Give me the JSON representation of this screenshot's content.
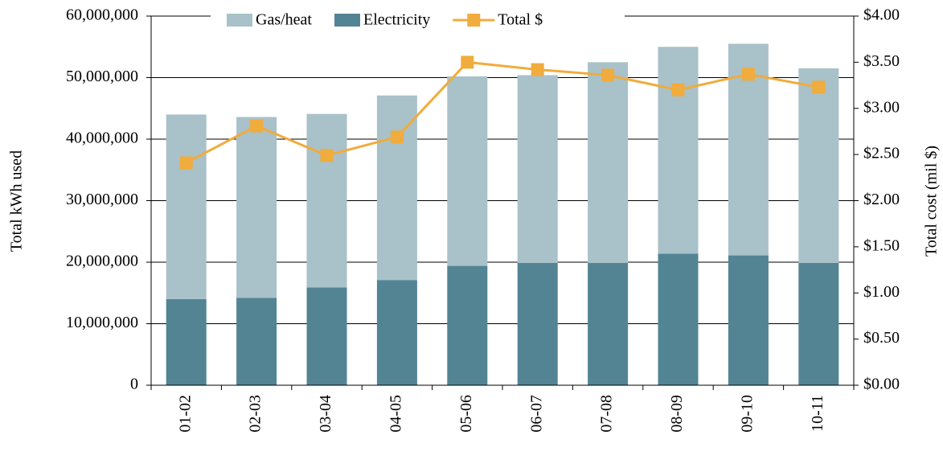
{
  "chart_data": {
    "type": "bar",
    "stacked": true,
    "categories": [
      "01-02",
      "02-03",
      "03-04",
      "04-05",
      "05-06",
      "06-07",
      "07-08",
      "08-09",
      "09-10",
      "10-11"
    ],
    "series": [
      {
        "name": "Gas/heat",
        "color": "#a9c1c9",
        "values": [
          30000000,
          29400000,
          28200000,
          30000000,
          30800000,
          30500000,
          32600000,
          33600000,
          34400000,
          31600000
        ]
      },
      {
        "name": "Electricity",
        "color": "#528494",
        "values": [
          14000000,
          14200000,
          15900000,
          17100000,
          19400000,
          19900000,
          19900000,
          21400000,
          21100000,
          19900000
        ]
      },
      {
        "name": "Total $",
        "color": "#f0ac3c",
        "type": "line",
        "axis": "y2",
        "values": [
          2.41,
          2.81,
          2.49,
          2.69,
          3.5,
          3.42,
          3.36,
          3.2,
          3.37,
          3.23
        ]
      }
    ],
    "ylabel": "Total kWh used",
    "y2label": "Total cost (mil $)",
    "ylim": [
      0,
      60000000
    ],
    "yticks": [
      0,
      {
        "value": 10000000,
        "label": "10,000,000"
      },
      {
        "value": 20000000,
        "label": "20,000,000"
      },
      {
        "value": 30000000,
        "label": "30,000,000"
      },
      {
        "value": 40000000,
        "label": "40,000,000"
      },
      {
        "value": 50000000,
        "label": "50,000,000"
      },
      {
        "value": 60000000,
        "label": "60,000,000"
      }
    ],
    "y2lim": [
      0,
      4
    ],
    "y2ticks": [
      {
        "value": 0,
        "label": "$0.00"
      },
      {
        "value": 0.5,
        "label": "$0.50"
      },
      {
        "value": 1,
        "label": "$1.00"
      },
      {
        "value": 1.5,
        "label": "$1.50"
      },
      {
        "value": 2,
        "label": "$2.00"
      },
      {
        "value": 2.5,
        "label": "$2.50"
      },
      {
        "value": 3,
        "label": "$3.00"
      },
      {
        "value": 3.5,
        "label": "$3.50"
      },
      {
        "value": 4,
        "label": "$4.00"
      }
    ],
    "grid": true,
    "legend": "top"
  }
}
